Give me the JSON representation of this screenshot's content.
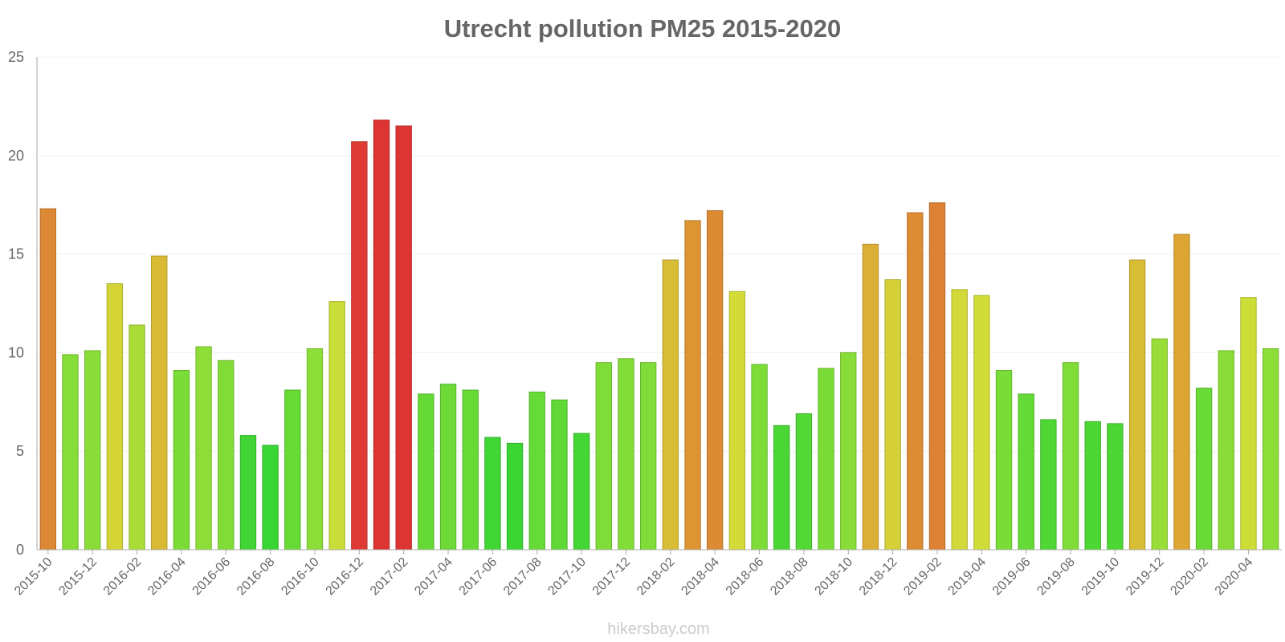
{
  "chart_data": {
    "type": "bar",
    "title": "Utrecht pollution PM25 2015-2020",
    "xlabel": "",
    "ylabel": "",
    "ylim": [
      0,
      25
    ],
    "yticks": [
      0,
      5,
      10,
      15,
      20,
      25
    ],
    "grid": true,
    "legend": "none",
    "categories": [
      "2015-10",
      "2015-11",
      "2015-12",
      "2016-01",
      "2016-02",
      "2016-03",
      "2016-04",
      "2016-05",
      "2016-06",
      "2016-07",
      "2016-08",
      "2016-09",
      "2016-10",
      "2016-11",
      "2016-12",
      "2017-01",
      "2017-02",
      "2017-03",
      "2017-04",
      "2017-05",
      "2017-06",
      "2017-07",
      "2017-08",
      "2017-09",
      "2017-10",
      "2017-11",
      "2017-12",
      "2018-01",
      "2018-02",
      "2018-03",
      "2018-04",
      "2018-05",
      "2018-06",
      "2018-07",
      "2018-08",
      "2018-09",
      "2018-10",
      "2018-11",
      "2018-12",
      "2019-01",
      "2019-02",
      "2019-03",
      "2019-04",
      "2019-05",
      "2019-06",
      "2019-07",
      "2019-08",
      "2019-09",
      "2019-10",
      "2019-11",
      "2019-12",
      "2020-01",
      "2020-02",
      "2020-03",
      "2020-04",
      "2020-05"
    ],
    "tick_labels": [
      "2015-10",
      "2015-12",
      "2016-02",
      "2016-04",
      "2016-06",
      "2016-08",
      "2016-10",
      "2016-12",
      "2017-02",
      "2017-04",
      "2017-06",
      "2017-08",
      "2017-10",
      "2017-12",
      "2018-02",
      "2018-04",
      "2018-06",
      "2018-08",
      "2018-10",
      "2018-12",
      "2019-02",
      "2019-04",
      "2019-06",
      "2019-08",
      "2019-10",
      "2019-12",
      "2020-02",
      "2020-04"
    ],
    "values": [
      17.3,
      9.9,
      10.1,
      13.5,
      11.4,
      14.9,
      9.1,
      10.3,
      9.6,
      5.8,
      5.3,
      8.1,
      10.2,
      12.6,
      20.7,
      21.8,
      21.5,
      7.9,
      8.4,
      8.1,
      5.7,
      5.4,
      8.0,
      7.6,
      5.9,
      9.5,
      9.7,
      9.5,
      14.7,
      16.7,
      17.2,
      13.1,
      9.4,
      6.3,
      6.9,
      9.2,
      10.0,
      15.5,
      13.7,
      17.1,
      17.6,
      13.2,
      12.9,
      9.1,
      7.9,
      6.6,
      9.5,
      6.5,
      6.4,
      14.7,
      10.7,
      16.0,
      8.2,
      10.1,
      12.8,
      10.2
    ]
  },
  "footer": {
    "credit": "hikersbay.com"
  },
  "colors": {
    "text": "#666666",
    "axis": "#aaaaaa",
    "grid": "#f0f0f0",
    "credit": "#cccccc"
  }
}
